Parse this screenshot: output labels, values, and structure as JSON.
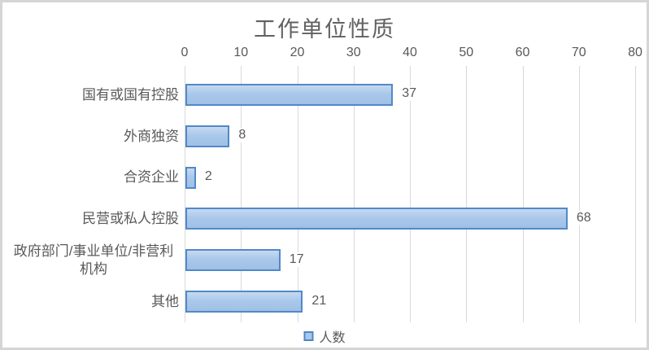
{
  "chart_data": {
    "type": "bar",
    "orientation": "horizontal",
    "title": "工作单位性质",
    "categories": [
      "国有或国有控股",
      "外商独资",
      "合资企业",
      "民营或私人控股",
      "政府部门/事业单位/非营利机构",
      "其他"
    ],
    "values": [
      37,
      8,
      2,
      68,
      17,
      21
    ],
    "series_name": "人数",
    "xlim": [
      0,
      80
    ],
    "xticks": [
      0,
      10,
      20,
      30,
      40,
      50,
      60,
      70,
      80
    ],
    "grid": "vertical-only",
    "axis_position": "top",
    "legend": {
      "label": "人数",
      "position": "bottom-center"
    },
    "colors": {
      "bar_fill_light": "#c6d9f1",
      "bar_fill_dark": "#9fc0e6",
      "bar_border": "#5189c8",
      "gridline": "#d9d9d9",
      "text": "#595959",
      "frame_border": "#d5d5d5"
    }
  }
}
